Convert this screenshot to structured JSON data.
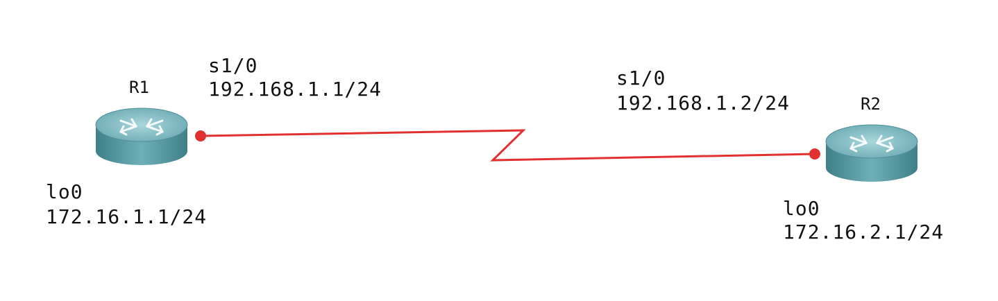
{
  "colors": {
    "link": "#e03030",
    "router_body": "#5e9ea8",
    "router_top": "#8dc3cb",
    "router_dark": "#3f7f88",
    "text": "#111111"
  },
  "routers": [
    {
      "name": "R1",
      "icon": "router-icon",
      "serial": {
        "interface": "s1/0",
        "ip": "192.168.1.1/24"
      },
      "loopback": {
        "interface": "lo0",
        "ip": "172.16.1.1/24"
      }
    },
    {
      "name": "R2",
      "icon": "router-icon",
      "serial": {
        "interface": "s1/0",
        "ip": "192.168.1.2/24"
      },
      "loopback": {
        "interface": "lo0",
        "ip": "172.16.2.1/24"
      }
    }
  ],
  "link": {
    "type": "serial",
    "icon": "serial-zigzag-link"
  }
}
